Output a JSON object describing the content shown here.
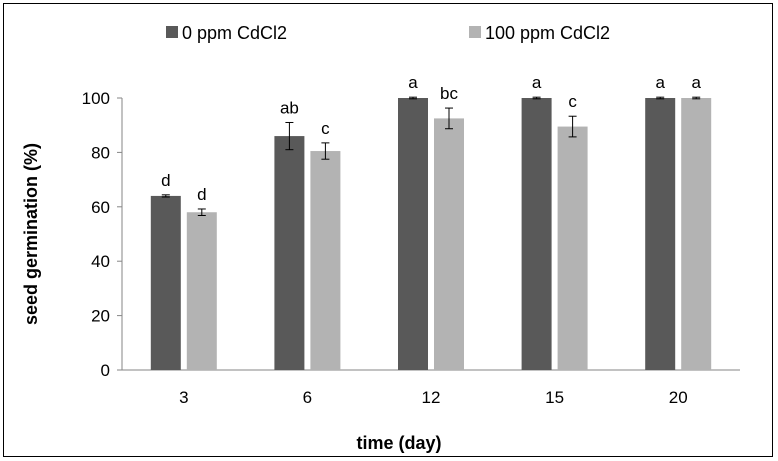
{
  "chart_data": {
    "type": "bar",
    "categories": [
      "3",
      "6",
      "12",
      "15",
      "20"
    ],
    "series": [
      {
        "name": "0 ppm CdCl2",
        "color": "#595959",
        "values": [
          64,
          86,
          100,
          100,
          100
        ],
        "errors": [
          0.4,
          5,
          0.3,
          0.3,
          0.3
        ],
        "letters": [
          "d",
          "ab",
          "a",
          "a",
          "a"
        ]
      },
      {
        "name": "100 ppm CdCl2",
        "color": "#b3b3b3",
        "values": [
          58,
          80.5,
          92.5,
          89.5,
          100
        ],
        "errors": [
          1.2,
          3,
          3.8,
          3.8,
          0.3
        ],
        "letters": [
          "d",
          "c",
          "bc",
          "c",
          "a"
        ]
      }
    ],
    "xlabel": "time (day)",
    "ylabel": "seed germination (%)",
    "ylim": [
      0,
      100
    ],
    "yticks": [
      0,
      20,
      40,
      60,
      80,
      100
    ],
    "grid": false,
    "legend": "top"
  }
}
